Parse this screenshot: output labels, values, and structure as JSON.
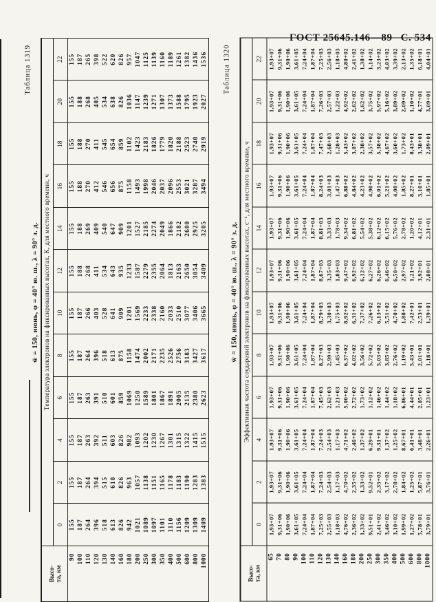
{
  "page": {
    "header": {
      "standard": "ГОСТ 25645.146—89",
      "page_no": "С. 534"
    }
  },
  "hours": [
    "0",
    "2",
    "4",
    "6",
    "8",
    "10",
    "12",
    "14",
    "16",
    "18",
    "20",
    "22"
  ],
  "tables": [
    {
      "label": "Таблица 1319",
      "title": "w̄ = 150, июнь, φ = 40° ю. ш., λ = 90° з. д.",
      "value_header": "Температура электронов на фиксированных высотах, К, для местного времени, ч",
      "row_header_lines": [
        "Высо-",
        "та, км"
      ],
      "heights": [
        "90",
        "100",
        "110",
        "120",
        "130",
        "140",
        "160",
        "180",
        "200",
        "250",
        "300",
        "350",
        "400",
        "500",
        "600",
        "800",
        "1000"
      ],
      "data": [
        [
          "155",
          "155",
          "155",
          "155",
          "155",
          "155",
          "155",
          "155",
          "155",
          "155",
          "155",
          "155"
        ],
        [
          "187",
          "187",
          "187",
          "187",
          "187",
          "187",
          "188",
          "188",
          "188",
          "188",
          "188",
          "187"
        ],
        [
          "264",
          "264",
          "263",
          "263",
          "264",
          "266",
          "268",
          "269",
          "270",
          "270",
          "268",
          "265"
        ],
        [
          "396",
          "394",
          "392",
          "391",
          "396",
          "403",
          "411",
          "409",
          "412",
          "411",
          "405",
          "398"
        ],
        [
          "518",
          "515",
          "511",
          "510",
          "518",
          "528",
          "534",
          "540",
          "546",
          "545",
          "534",
          "522"
        ],
        [
          "613",
          "610",
          "603",
          "601",
          "613",
          "641",
          "643",
          "647",
          "656",
          "654",
          "638",
          "620"
        ],
        [
          "826",
          "826",
          "826",
          "859",
          "875",
          "909",
          "935",
          "909",
          "875",
          "859",
          "826",
          "826"
        ],
        [
          "942",
          "963",
          "982",
          "1069",
          "1158",
          "1201",
          "1233",
          "1201",
          "1158",
          "1102",
          "1036",
          "957"
        ],
        [
          "1021",
          "1057",
          "1093",
          "1250",
          "1474",
          "1569",
          "1587",
          "1527",
          "1493",
          "1423",
          "1147",
          "1047"
        ],
        [
          "1089",
          "1138",
          "1202",
          "1589",
          "2002",
          "2233",
          "2279",
          "2185",
          "1998",
          "2183",
          "1239",
          "1125"
        ],
        [
          "1097",
          "1151",
          "1230",
          "1801",
          "2171",
          "2338",
          "2355",
          "2274",
          "2046",
          "1826",
          "1271",
          "1139"
        ],
        [
          "1101",
          "1165",
          "1267",
          "1867",
          "2235",
          "2160",
          "2064",
          "2049",
          "2037",
          "1779",
          "1307",
          "1160"
        ],
        [
          "1110",
          "1178",
          "1301",
          "1891",
          "2526",
          "2033",
          "1813",
          "1866",
          "2096",
          "1820",
          "1373",
          "1189"
        ],
        [
          "1156",
          "1183",
          "1315",
          "2005",
          "2756",
          "2510",
          "2163",
          "2182",
          "2553",
          "2188",
          "1588",
          "1261"
        ],
        [
          "1209",
          "1190",
          "1322",
          "2135",
          "3183",
          "3077",
          "2650",
          "2600",
          "3021",
          "2523",
          "1795",
          "1382"
        ],
        [
          "1309",
          "1283",
          "1415",
          "2380",
          "3427",
          "3406",
          "3054",
          "2925",
          "3287",
          "2740",
          "1923",
          "1436"
        ],
        [
          "1409",
          "1383",
          "1515",
          "2623",
          "3617",
          "3665",
          "3409",
          "3205",
          "3494",
          "2919",
          "2027",
          "1536"
        ]
      ]
    },
    {
      "label": "Таблица 1320",
      "title": "w̄ = 150, июнь, φ = 40° ю. ш., λ = 90° з. д.",
      "value_header": "Эффективная частота соударений электронов на фиксированных высотах, с⁻¹, для местного времени, ч",
      "row_header_lines": [
        "Высо-",
        "та, км"
      ],
      "heights": [
        "65",
        "70",
        "80",
        "90",
        "100",
        "110",
        "120",
        "130",
        "140",
        "160",
        "180",
        "200",
        "250",
        "300",
        "350",
        "400",
        "500",
        "600",
        "800",
        "1000"
      ],
      "data": [
        [
          "1,93+07",
          "1,93+07",
          "1,93+07",
          "1,93+07",
          "1,93+07",
          "1,93+07",
          "1,93+07",
          "1,93+07",
          "1,93+07",
          "1,93+07",
          "1,93+07",
          "1,93+07"
        ],
        [
          "9,31+06",
          "9,31+06",
          "9,31+06",
          "9,31+06",
          "9,31+06",
          "9,31+06",
          "9,31+06",
          "9,31+06",
          "9,31+06",
          "9,31+06",
          "9,31+06",
          "9,31+06"
        ],
        [
          "1,90+06",
          "1,90+06",
          "1,90+06",
          "1,90+06",
          "1,90+06",
          "1,90+06",
          "1,90+06",
          "1,90+06",
          "1,90+06",
          "1,90+06",
          "1,90+06",
          "1,90+06"
        ],
        [
          "3,61+05",
          "3,61+05",
          "3,61+05",
          "3,61+05",
          "3,61+05",
          "3,61+05",
          "3,61+05",
          "3,61+05",
          "3,61+05",
          "3,61+05",
          "3,61+05",
          "3,61+05"
        ],
        [
          "7,24+04",
          "7,24+04",
          "7,24+04",
          "7,24+04",
          "7,24+04",
          "7,24+04",
          "7,24+04",
          "7,24+04",
          "7,24+04",
          "7,24+04",
          "7,24+04",
          "7,24+04"
        ],
        [
          "1,87+04",
          "1,87+04",
          "1,87+04",
          "1,87+04",
          "1,87+04",
          "1,87+04",
          "1,87+04",
          "1,87+04",
          "1,87+04",
          "1,87+04",
          "1,87+04",
          "1,87+04"
        ],
        [
          "7,25+03",
          "7,24+03",
          "7,24+03",
          "7,45+03",
          "8,27+03",
          "8,79+03",
          "8,67+03",
          "8,81+03",
          "8,24+03",
          "7,47+03",
          "7,26+03",
          "7,25+03"
        ],
        [
          "2,55+03",
          "2,54+03",
          "2,54+03",
          "2,62+03",
          "2,99+03",
          "3,30+03",
          "3,35+03",
          "3,33+03",
          "3,01+03",
          "2,68+03",
          "2,57+03",
          "2,56+03"
        ],
        [
          "1,18+03",
          "1,17+03",
          "1,17+03",
          "1,21+03",
          "1,45+03",
          "1,75+03",
          "1,83+03",
          "1,78+03",
          "1,47+03",
          "1,28+03",
          "1,22+03",
          "1,18+03"
        ],
        [
          "4,76+02",
          "4,70+02",
          "4,71+02",
          "5,00+02",
          "6,37+02",
          "8,92+02",
          "9,47+02",
          "9,34+02",
          "6,88+02",
          "5,43+02",
          "4,92+02",
          "4,80+02"
        ],
        [
          "2,36+02",
          "2,35+02",
          "2,40+02",
          "2,72+02",
          "4,02+02",
          "6,31+02",
          "6,92+02",
          "6,81+02",
          "4,84+02",
          "3,07+02",
          "2,62+02",
          "2,41+02"
        ],
        [
          "1,33+02",
          "1,33+02",
          "1,37+02",
          "1,73+02",
          "3,56+02",
          "7,37+02",
          "6,12+02",
          "5,54+02",
          "4,23+02",
          "2,38+02",
          "1,62+02",
          "1,38+02"
        ],
        [
          "9,51+01",
          "9,52+01",
          "6,29+01",
          "1,12+02",
          "5,72+02",
          "7,26+02",
          "6,27+02",
          "5,38+02",
          "4,90+02",
          "3,57+02",
          "3,75+02",
          "1,14+02"
        ],
        [
          "2,41+02",
          "2,35+02",
          "9,31+01",
          "1,46+02",
          "5,03+02",
          "6,13+02",
          "6,26+02",
          "6,12+02",
          "6,01+02",
          "5,38+02",
          "5,97+02",
          "3,23+02"
        ],
        [
          "3,46+02",
          "3,17+02",
          "1,37+02",
          "1,44+02",
          "3,85+02",
          "5,51+02",
          "6,46+02",
          "6,15+02",
          "5,21+02",
          "4,67+02",
          "5,16+02",
          "4,03+02"
        ],
        [
          "3,10+02",
          "2,78+02",
          "1,25+02",
          "1,18+02",
          "2,76+02",
          "4,70+02",
          "6,50+02",
          "5,76+02",
          "4,00+02",
          "3,60+02",
          "3,89+02",
          "3,39+02"
        ],
        [
          "1,99+02",
          "1,84+02",
          "8,67+01",
          "6,86+01",
          "1,19+02",
          "1,88+02",
          "2,97+02",
          "2,78+02",
          "1,85+02",
          "1,73+02",
          "2,09+02",
          "2,13+02"
        ],
        [
          "1,27+02",
          "1,25+02",
          "6,41+01",
          "4,44+01",
          "5,43+01",
          "7,42+01",
          "1,21+02",
          "1,20+02",
          "8,27+01",
          "8,43+01",
          "1,10+02",
          "1,35+02"
        ],
        [
          "5,78+01",
          "5,87+01",
          "3,48+01",
          "2,05+01",
          "2,01+01",
          "2,53+01",
          "3,92+01",
          "4,12+01",
          "3,10+01",
          "3,38+01",
          "4,77+01",
          "6,18+01"
        ],
        [
          "3,79+01",
          "3,76+01",
          "2,26+01",
          "1,23+01",
          "1,18+01",
          "1,39+01",
          "2,08+01",
          "2,31+01",
          "1,85+01",
          "2,09+01",
          "3,09+01",
          "4,04+01"
        ]
      ]
    }
  ]
}
